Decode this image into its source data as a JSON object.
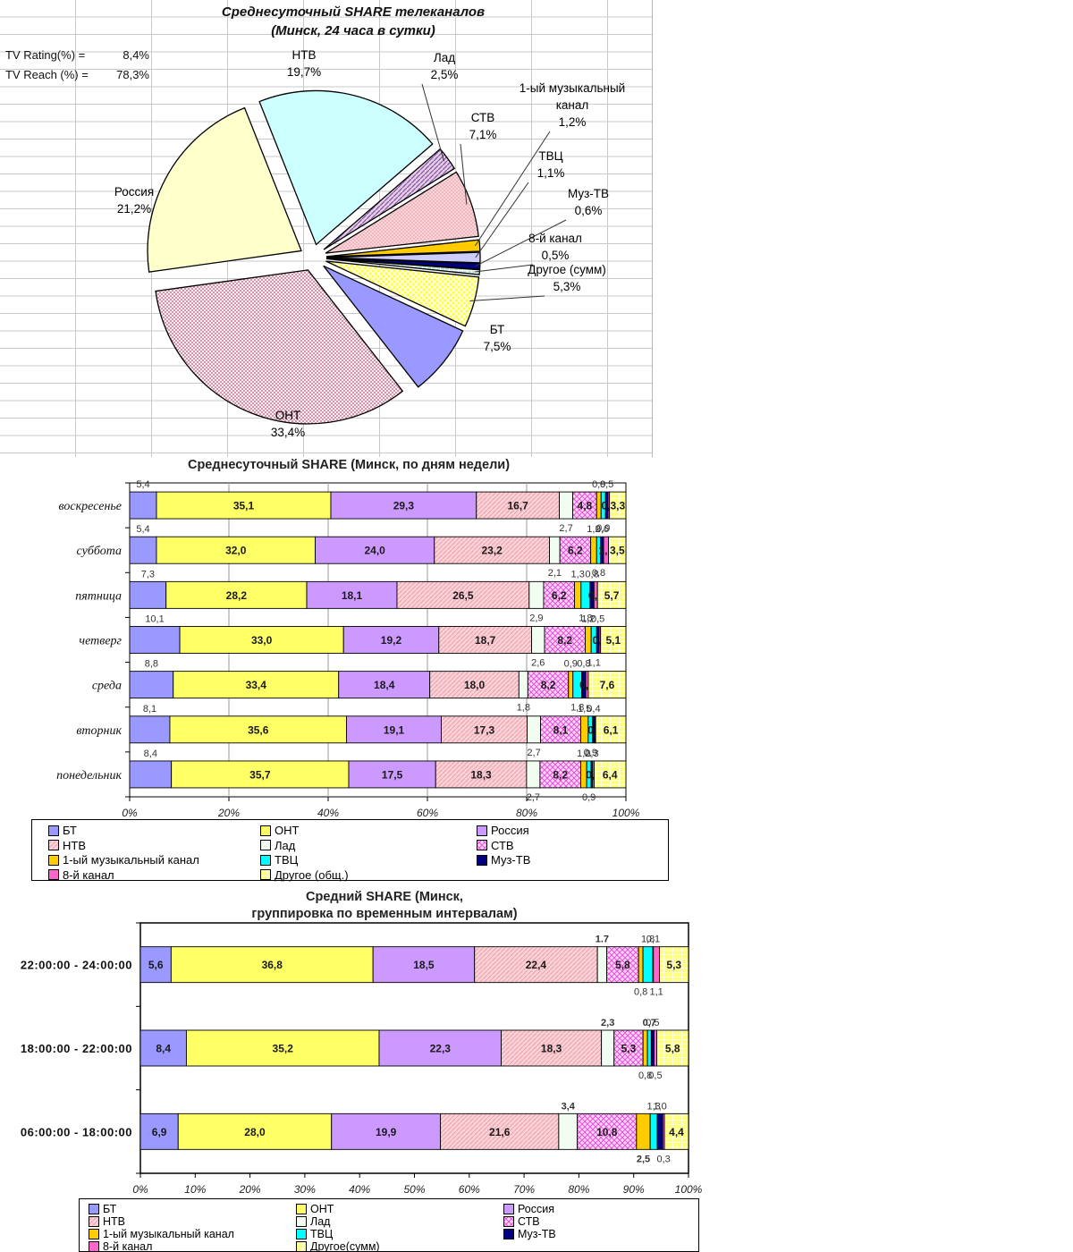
{
  "app": {
    "background": "#FFFFFF"
  },
  "pie_stats": [
    {
      "label": "TV Rating(%) =",
      "value": "8,4%"
    },
    {
      "label": "TV Reach (%) =",
      "value": "78,3%"
    }
  ],
  "chart_data": [
    {
      "id": "pie-daily",
      "type": "pie",
      "title": "Среднесуточный SHARE телеканалов (Минск, 24 часа в сутки)",
      "title_lines": [
        "Среднесуточный SHARE телеканалов",
        "(Минск, 24 часа в сутки)"
      ],
      "start_angle_deg": 115,
      "slices": [
        {
          "name": "БТ",
          "pct": 7.5,
          "label_lines": [
            "БТ",
            "7,5%"
          ],
          "fill": "#9999FF",
          "leader": false
        },
        {
          "name": "ОНТ",
          "pct": 33.4,
          "label_lines": [
            "ОНТ",
            "33,4%"
          ],
          "fill": "pattern:dots-rose",
          "leader": false
        },
        {
          "name": "Россия",
          "pct": 21.2,
          "label_lines": [
            "Россия",
            "21,2%"
          ],
          "fill": "#FFFFCC",
          "leader": false
        },
        {
          "name": "НТВ",
          "pct": 19.7,
          "label_lines": [
            "НТВ",
            "19,7%"
          ],
          "fill": "#CCFFFF",
          "leader": false
        },
        {
          "name": "Лад",
          "pct": 2.5,
          "label_lines": [
            "Лад",
            "2,5%"
          ],
          "fill": "pattern:hatch-purple",
          "leader": true
        },
        {
          "name": "СТВ",
          "pct": 7.1,
          "label_lines": [
            "СТВ",
            "7,1%"
          ],
          "fill": "pattern:dots-pink",
          "leader": true
        },
        {
          "name": "1-ый музыкальный канал",
          "pct": 1.2,
          "label_lines": [
            "1-ый музыкальный",
            "канал",
            "1,2%"
          ],
          "fill": "#FFCC00",
          "leader": true
        },
        {
          "name": "ТВЦ",
          "pct": 1.1,
          "label_lines": [
            "ТВЦ",
            "1,1%"
          ],
          "fill": "#CCCCFF",
          "leader": true
        },
        {
          "name": "Муз-ТВ",
          "pct": 0.6,
          "label_lines": [
            "Муз-ТВ",
            "0,6%"
          ],
          "fill": "#000080",
          "leader": true
        },
        {
          "name": "8-й канал",
          "pct": 0.5,
          "label_lines": [
            "8-й канал",
            "0,5%"
          ],
          "fill": "pattern:check-mint",
          "leader": true
        },
        {
          "name": "Другое (сумм)",
          "pct": 5.3,
          "label_lines": [
            "Другое (сумм)",
            "5,3%"
          ],
          "fill": "pattern:check-yellow",
          "leader": true
        }
      ]
    },
    {
      "id": "weekday",
      "type": "stacked-bar-horizontal",
      "title": "Среднесуточный SHARE (Минск, по дням недели)",
      "categories": [
        "воскресенье",
        "суббота",
        "пятница",
        "четверг",
        "среда",
        "вторник",
        "понедельник"
      ],
      "x_ticks": [
        "0%",
        "20%",
        "40%",
        "60%",
        "80%",
        "100%"
      ],
      "series": [
        {
          "name": "БТ",
          "fill": "#9999FF",
          "label_pos": "above"
        },
        {
          "name": "ОНТ",
          "fill": "#FFFF66",
          "label_pos": "in"
        },
        {
          "name": "Россия",
          "fill": "#CC99FF",
          "label_pos": "in"
        },
        {
          "name": "НТВ",
          "fill": "pattern:hatch-rose",
          "label_pos": "in"
        },
        {
          "name": "Лад",
          "fill": "#F2FDF2",
          "label_pos": "below"
        },
        {
          "name": "СТВ",
          "fill": "pattern:diamond-pink",
          "label_pos": "in"
        },
        {
          "name": "1-ый музыкальный канал",
          "fill": "#FFCC00",
          "label_pos": "above"
        },
        {
          "name": "ТВЦ",
          "fill": "#00FFFF",
          "label_pos": "below"
        },
        {
          "name": "Муз-ТВ",
          "fill": "#000080",
          "label_pos": "above"
        },
        {
          "name": "8-й канал",
          "fill": "#FF66CC",
          "label_pos": "in"
        },
        {
          "name": "Другое (общ.)",
          "fill": "pattern:check-ltyellow",
          "label_pos": "in"
        }
      ],
      "rows": [
        {
          "values": [
            5.4,
            35.1,
            29.3,
            16.7,
            2.7,
            4.8,
            0.9,
            0.9,
            0.5,
            0.3,
            3.3
          ],
          "labels": [
            "5,4",
            "35,1",
            "29,3",
            "16,7",
            "2,7",
            "4,8",
            "0,9",
            "0,9",
            "0,5",
            "0,3",
            "3,3"
          ],
          "bold": []
        },
        {
          "values": [
            5.4,
            32.0,
            24.0,
            23.2,
            2.1,
            6.2,
            1.2,
            0.8,
            0.6,
            1.0,
            3.5
          ],
          "labels": [
            "5,4",
            "32,0",
            "24,0",
            "23,2",
            "2,1",
            "6,2",
            "1,2",
            "0,8",
            "0,6",
            "1,0",
            "3,5"
          ],
          "bold": []
        },
        {
          "values": [
            7.3,
            28.2,
            18.1,
            26.5,
            2.9,
            6.2,
            1.3,
            1.8,
            0.8,
            0.7,
            5.7
          ],
          "labels": [
            "7,3",
            "28,2",
            "18,1",
            "26,5",
            "2,9",
            "6,2",
            "1,3",
            "1,8",
            "0,8",
            "0,7",
            "5,7"
          ],
          "bold": []
        },
        {
          "values": [
            10.1,
            33.0,
            19.2,
            18.7,
            2.6,
            8.2,
            1.2,
            1.1,
            0.5,
            0.3,
            5.1
          ],
          "labels": [
            "10,1",
            "33,0",
            "19,2",
            "18,7",
            "2,6",
            "8,2",
            "1,2",
            "1,1",
            "0,5",
            "0,3",
            "5,1"
          ],
          "bold": []
        },
        {
          "values": [
            8.8,
            33.4,
            18.4,
            18.0,
            1.8,
            8.2,
            0.9,
            1.8,
            0.8,
            0.5,
            7.6
          ],
          "labels": [
            "8,8",
            "33,4",
            "18,4",
            "18,0",
            "1,8",
            "8,2",
            "0,9",
            "1,8",
            "0,8",
            "0,5",
            "7,6"
          ],
          "bold": []
        },
        {
          "values": [
            8.1,
            35.6,
            19.1,
            17.3,
            2.7,
            8.1,
            1.5,
            0.9,
            0.4,
            0.2,
            6.1
          ],
          "labels": [
            "8,1",
            "35,6",
            "19,1",
            "17,3",
            "2,7",
            "8,1",
            "1,5",
            "0,9",
            "0,4",
            "0,2",
            "6,1"
          ],
          "bold": []
        },
        {
          "values": [
            8.4,
            35.7,
            17.5,
            18.3,
            2.7,
            8.2,
            1.2,
            0.9,
            0.3,
            0.3,
            6.4
          ],
          "labels": [
            "8,4",
            "35,7",
            "17,5",
            "18,3",
            "2,7",
            "8,2",
            "1,2",
            "0,9",
            "0,3",
            "0,3",
            "6,4"
          ],
          "bold": []
        }
      ]
    },
    {
      "id": "interval",
      "type": "stacked-bar-horizontal",
      "title": "Средний SHARE (Минск, группировка по временным интервалам)",
      "title_lines": [
        "Средний SHARE (Минск,",
        "группировка по временным интервалам)"
      ],
      "categories": [
        "22:00:00 - 24:00:00",
        "18:00:00 - 22:00:00",
        "06:00:00 - 18:00:00"
      ],
      "x_ticks": [
        "0%",
        "10%",
        "20%",
        "30%",
        "40%",
        "50%",
        "60%",
        "70%",
        "80%",
        "90%",
        "100%"
      ],
      "series": [
        {
          "name": "БТ",
          "fill": "#9999FF",
          "label_pos": "in"
        },
        {
          "name": "ОНТ",
          "fill": "#FFFF66",
          "label_pos": "in"
        },
        {
          "name": "Россия",
          "fill": "#CC99FF",
          "label_pos": "in"
        },
        {
          "name": "НТВ",
          "fill": "pattern:hatch-rose",
          "label_pos": "in"
        },
        {
          "name": "Лад",
          "fill": "#F2FDF2",
          "label_pos": "above"
        },
        {
          "name": "СТВ",
          "fill": "pattern:diamond-pink",
          "label_pos": "in"
        },
        {
          "name": "1-ый музыкальный канал",
          "fill": "#FFCC00",
          "label_pos": "below"
        },
        {
          "name": "ТВЦ",
          "fill": "#00FFFF",
          "label_pos": "above"
        },
        {
          "name": "Муз-ТВ",
          "fill": "#000080",
          "label_pos": "above"
        },
        {
          "name": "8-й канал",
          "fill": "#FF66CC",
          "label_pos": "below"
        },
        {
          "name": "Другое(сумм)",
          "fill": "pattern:check-ltyellow",
          "label_pos": "in"
        }
      ],
      "rows": [
        {
          "values": [
            5.6,
            36.8,
            18.5,
            22.4,
            1.7,
            5.8,
            0.8,
            1.8,
            0.1,
            1.1,
            5.3
          ],
          "labels": [
            "5,6",
            "36,8",
            "18,5",
            "22,4",
            "1.7",
            "5,8",
            "0,8",
            "1,8",
            "0,1",
            "1,1",
            "5,3"
          ],
          "bold": [
            4
          ]
        },
        {
          "values": [
            8.4,
            35.2,
            22.3,
            18.3,
            2.3,
            5.3,
            0.8,
            0.7,
            0.5,
            0.5,
            5.8
          ],
          "labels": [
            "8,4",
            "35,2",
            "22,3",
            "18,3",
            "2,3",
            "5,3",
            "0,8",
            "0,7",
            "0,5",
            "0,5",
            "5,8"
          ],
          "bold": [
            4,
            7
          ]
        },
        {
          "values": [
            6.9,
            28.0,
            19.9,
            21.6,
            3.4,
            10.8,
            2.5,
            1.3,
            1.0,
            0.3,
            4.4
          ],
          "labels": [
            "6,9",
            "28,0",
            "19,9",
            "21,6",
            "3,4",
            "10,8",
            "2,5",
            "1,3",
            "1,0",
            "0,3",
            "4,4"
          ],
          "bold": [
            4,
            6
          ]
        }
      ]
    }
  ]
}
